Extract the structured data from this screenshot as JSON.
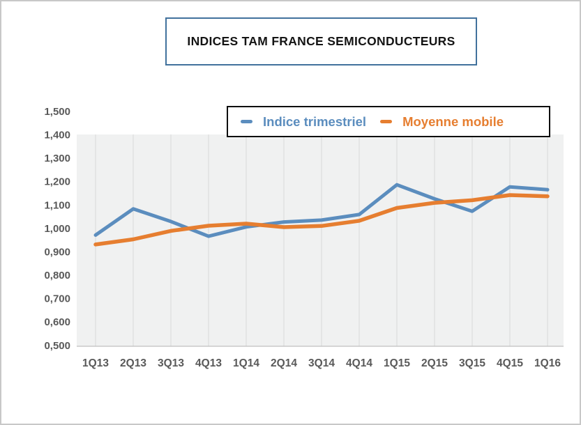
{
  "title": {
    "text": "INDICES TAM FRANCE SEMICONDUCTEURS",
    "border_color": "#41719c"
  },
  "legend": {
    "border_color": "#0d0d0d",
    "position": "top-inside"
  },
  "chart_data": {
    "type": "line",
    "title": "INDICES TAM FRANCE SEMICONDUCTEURS",
    "categories": [
      "1Q13",
      "2Q13",
      "3Q13",
      "4Q13",
      "1Q14",
      "2Q14",
      "3Q14",
      "4Q14",
      "1Q15",
      "2Q15",
      "3Q15",
      "4Q15",
      "1Q16"
    ],
    "series": [
      {
        "name": "Indice trimestriel",
        "color": "#5b8dbe",
        "values": [
          0.97,
          1.082,
          1.028,
          0.965,
          1.005,
          1.026,
          1.034,
          1.058,
          1.185,
          1.125,
          1.072,
          1.176,
          1.164
        ]
      },
      {
        "name": "Moyenne mobile",
        "color": "#e67e30",
        "values": [
          0.93,
          0.952,
          0.988,
          1.01,
          1.019,
          1.004,
          1.009,
          1.031,
          1.086,
          1.108,
          1.119,
          1.141,
          1.136
        ]
      }
    ],
    "y_axis": {
      "min": 0.5,
      "max": 1.5,
      "step": 0.1,
      "tick_labels": [
        "1,500",
        "1,400",
        "1,300",
        "1,200",
        "1,100",
        "1,000",
        "0,900",
        "0,800",
        "0,700",
        "0,600",
        "0,500"
      ]
    },
    "x_axis": {
      "tick_labels": [
        "1Q13",
        "2Q13",
        "3Q13",
        "4Q13",
        "1Q14",
        "2Q14",
        "3Q14",
        "4Q14",
        "1Q15",
        "2Q15",
        "3Q15",
        "4Q15",
        "1Q16"
      ]
    },
    "grid": "vertical-only",
    "plot_background": "#f0f1f1",
    "gridline_color": "#d9d9d9",
    "axis_line_color": "#bfbfbf",
    "legend_position": "top-right-inside"
  }
}
